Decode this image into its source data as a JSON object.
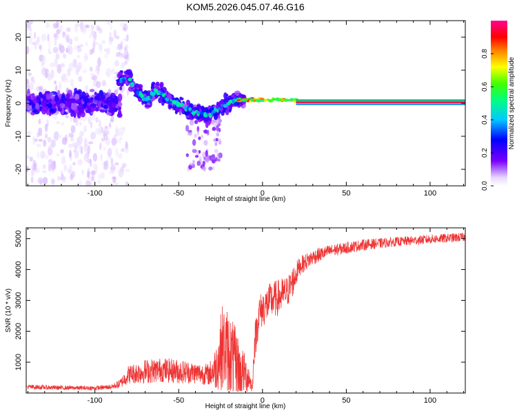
{
  "title": "KOM5.2026.045.07.46.G16",
  "chart_data": [
    {
      "type": "heatmap",
      "name": "spectrogram",
      "xlabel": "Height of straight line (km)",
      "ylabel": "Frequency (Hz)",
      "xlim": [
        -141,
        121
      ],
      "ylim": [
        -25,
        25
      ],
      "x_ticks": [
        -100,
        -50,
        0,
        50,
        100
      ],
      "x_tick_labels": [
        "-100",
        "-50",
        "0",
        "50",
        "100"
      ],
      "y_ticks": [
        -20,
        -10,
        0,
        10,
        20
      ],
      "y_tick_labels": [
        "-20",
        "-10",
        "0",
        "10",
        "20"
      ],
      "colorbar": {
        "label": "Normalized spectral amplitude",
        "range": [
          0,
          1
        ],
        "ticks": [
          0.0,
          0.2,
          0.4,
          0.6,
          0.8
        ],
        "tick_labels": [
          "0.0",
          "0.2",
          "0.4",
          "0.6",
          "0.8"
        ],
        "colormap": "rainbow (white to purple to blue to cyan to green to yellow to red to magenta)"
      },
      "features": [
        {
          "desc": "scattered noise",
          "x_range": [
            -141,
            -80
          ],
          "freq_range": [
            -25,
            25
          ],
          "amplitude": 0.05
        },
        {
          "desc": "noisy band",
          "x_range": [
            -141,
            -85
          ],
          "freq_range": [
            -5,
            5
          ],
          "amplitude": 0.15
        },
        {
          "desc": "oscillating carrier",
          "x_range": [
            -85,
            -15
          ],
          "freq_range": [
            -4,
            8
          ],
          "amplitude": 0.3
        },
        {
          "desc": "converging line",
          "x_range": [
            -15,
            20
          ],
          "freq_range": [
            0,
            2
          ],
          "amplitude": 0.6
        },
        {
          "desc": "steady line at 0 Hz",
          "x_range": [
            20,
            121
          ],
          "freq": 0.3,
          "amplitude": 0.95
        }
      ]
    },
    {
      "type": "line",
      "name": "snr",
      "xlabel": "Height of straight line (km)",
      "ylabel": "SNR (10 * v/v)",
      "xlim": [
        -141,
        121
      ],
      "ylim": [
        0,
        5350
      ],
      "x_ticks": [
        -100,
        -50,
        0,
        50,
        100
      ],
      "x_tick_labels": [
        "-100",
        "-50",
        "0",
        "50",
        "100"
      ],
      "y_ticks": [
        1000,
        2000,
        3000,
        4000,
        5000
      ],
      "y_tick_labels": [
        "1000",
        "2000",
        "3000",
        "4000",
        "5000"
      ],
      "color": "#ee3333",
      "series": [
        {
          "name": "SNR envelope (approx. mean, noise amplitude)",
          "points": [
            [
              -141,
              200,
              80
            ],
            [
              -120,
              170,
              70
            ],
            [
              -100,
              160,
              70
            ],
            [
              -90,
              200,
              80
            ],
            [
              -85,
              300,
              150
            ],
            [
              -80,
              600,
              300
            ],
            [
              -70,
              700,
              400
            ],
            [
              -60,
              750,
              400
            ],
            [
              -50,
              700,
              400
            ],
            [
              -40,
              650,
              350
            ],
            [
              -32,
              600,
              350
            ],
            [
              -28,
              800,
              700
            ],
            [
              -24,
              1500,
              1400
            ],
            [
              -20,
              1300,
              1400
            ],
            [
              -16,
              900,
              1200
            ],
            [
              -10,
              600,
              600
            ],
            [
              -8,
              500,
              500
            ],
            [
              -6,
              150,
              100
            ],
            [
              -5,
              1500,
              600
            ],
            [
              -2,
              2600,
              600
            ],
            [
              5,
              3000,
              600
            ],
            [
              10,
              3100,
              600
            ],
            [
              15,
              3300,
              500
            ],
            [
              18,
              3600,
              500
            ],
            [
              22,
              4100,
              300
            ],
            [
              30,
              4400,
              250
            ],
            [
              40,
              4600,
              200
            ],
            [
              60,
              4800,
              180
            ],
            [
              80,
              4900,
              150
            ],
            [
              100,
              4980,
              150
            ],
            [
              121,
              5050,
              150
            ]
          ]
        }
      ]
    }
  ]
}
